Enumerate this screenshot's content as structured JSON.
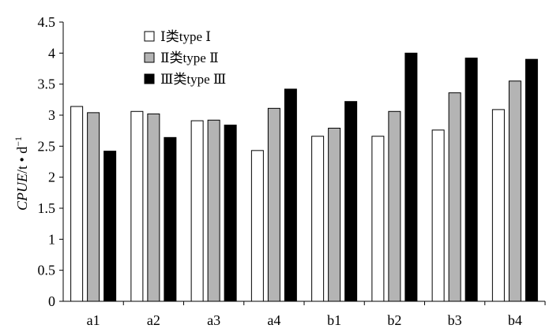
{
  "chart_data": {
    "type": "bar",
    "categories": [
      "a1",
      "a2",
      "a3",
      "a4",
      "b1",
      "b2",
      "b3",
      "b4"
    ],
    "series": [
      {
        "name": "Ⅰ类type Ⅰ",
        "color": "#ffffff",
        "values": [
          3.14,
          3.06,
          2.91,
          2.43,
          2.66,
          2.66,
          2.76,
          3.09
        ]
      },
      {
        "name": "Ⅱ类type Ⅱ",
        "color": "#b4b4b4",
        "values": [
          3.04,
          3.02,
          2.92,
          3.11,
          2.79,
          3.06,
          3.36,
          3.55
        ]
      },
      {
        "name": "Ⅲ类type Ⅲ",
        "color": "#000000",
        "values": [
          2.42,
          2.64,
          2.84,
          3.42,
          3.22,
          4.0,
          3.92,
          3.9
        ]
      }
    ],
    "ylabel": {
      "italic": "CPUE",
      "rest": "/t • d",
      "sup": "−1"
    },
    "ylim": [
      0,
      4.5
    ],
    "yticks": [
      "0",
      "0.5",
      "1",
      "1.5",
      "2",
      "2.5",
      "3",
      "3.5",
      "4",
      "4.5"
    ],
    "grid": false,
    "legend_position": "top-left"
  }
}
